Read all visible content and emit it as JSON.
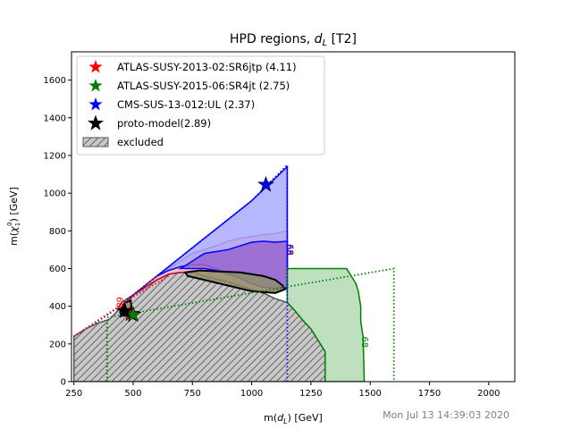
{
  "chart_data": {
    "type": "area",
    "title_main": "HPD regions, ",
    "title_sym": "d",
    "title_sub": "L",
    "title_tail": " [T2]",
    "xlabel_main": "m(",
    "xlabel_sym": "d",
    "xlabel_sub": "L",
    "xlabel_tail": ") [GeV]",
    "ylabel_main": "m(",
    "ylabel_sym": "χ",
    "ylabel_sub": "1",
    "ylabel_sup": "0",
    "ylabel_tail": ") [GeV]",
    "xlim": [
      240,
      2110
    ],
    "ylim": [
      0,
      1750
    ],
    "xticks": [
      250,
      500,
      750,
      1000,
      1250,
      1500,
      1750,
      2000
    ],
    "yticks": [
      0,
      200,
      400,
      600,
      800,
      1000,
      1200,
      1400,
      1600
    ],
    "timestamp": "Mon Jul 13 14:39:03 2020",
    "legend_position": "upper-left",
    "legend": [
      {
        "label": "ATLAS-SUSY-2013-02:SR6jtp (4.11)",
        "marker": "star",
        "color": "#ff0000"
      },
      {
        "label": "ATLAS-SUSY-2015-06:SR4jt (2.75)",
        "marker": "star",
        "color": "#008000"
      },
      {
        "label": "CMS-SUS-13-012:UL (2.37)",
        "marker": "star",
        "color": "#0000ff"
      },
      {
        "label": "proto-model(2.89)",
        "marker": "star",
        "color": "#000000"
      },
      {
        "label": "excluded",
        "marker": "hatch-patch",
        "color": "#c8c8c8"
      }
    ],
    "contour_label": "68",
    "regions": [
      {
        "name": "excluded",
        "fill": "#c8c8c8",
        "hatch": true,
        "stroke": "#555555",
        "points": [
          [
            250,
            0
          ],
          [
            250,
            240
          ],
          [
            300,
            280
          ],
          [
            350,
            310
          ],
          [
            400,
            330
          ],
          [
            430,
            370
          ],
          [
            450,
            420
          ],
          [
            500,
            460
          ],
          [
            550,
            500
          ],
          [
            600,
            540
          ],
          [
            650,
            570
          ],
          [
            700,
            580
          ],
          [
            760,
            580
          ],
          [
            800,
            560
          ],
          [
            850,
            545
          ],
          [
            900,
            530
          ],
          [
            950,
            510
          ],
          [
            1000,
            490
          ],
          [
            1050,
            470
          ],
          [
            1100,
            440
          ],
          [
            1150,
            420
          ],
          [
            1180,
            380
          ],
          [
            1220,
            320
          ],
          [
            1250,
            280
          ],
          [
            1270,
            240
          ],
          [
            1290,
            200
          ],
          [
            1310,
            160
          ],
          [
            1310,
            0
          ]
        ]
      },
      {
        "name": "ATLAS-SUSY-2013-02:SR6jtp",
        "fill": "#ffb3b3",
        "stroke": "#aa0044",
        "points": [
          [
            440,
            380
          ],
          [
            500,
            460
          ],
          [
            550,
            510
          ],
          [
            600,
            560
          ],
          [
            650,
            600
          ],
          [
            700,
            640
          ],
          [
            750,
            680
          ],
          [
            800,
            700
          ],
          [
            850,
            720
          ],
          [
            900,
            745
          ],
          [
            950,
            760
          ],
          [
            1000,
            770
          ],
          [
            1050,
            780
          ],
          [
            1100,
            785
          ],
          [
            1150,
            800
          ],
          [
            1150,
            500
          ],
          [
            1100,
            480
          ],
          [
            1050,
            470
          ],
          [
            1000,
            490
          ],
          [
            950,
            510
          ],
          [
            900,
            530
          ],
          [
            850,
            545
          ],
          [
            800,
            560
          ],
          [
            760,
            580
          ],
          [
            700,
            580
          ],
          [
            650,
            570
          ],
          [
            600,
            540
          ],
          [
            550,
            500
          ],
          [
            500,
            460
          ],
          [
            460,
            400
          ]
        ]
      },
      {
        "name": "CMS-SUS-13-012:UL",
        "fill": "#aaaaff",
        "stroke": "#0000ff",
        "points": [
          [
            600,
            560
          ],
          [
            700,
            660
          ],
          [
            800,
            760
          ],
          [
            900,
            860
          ],
          [
            1000,
            960
          ],
          [
            1100,
            1080
          ],
          [
            1150,
            1140
          ],
          [
            1150,
            490
          ],
          [
            1100,
            500
          ],
          [
            1050,
            520
          ],
          [
            1000,
            540
          ],
          [
            950,
            560
          ],
          [
            900,
            580
          ],
          [
            850,
            600
          ],
          [
            800,
            620
          ],
          [
            750,
            620
          ],
          [
            700,
            610
          ],
          [
            650,
            590
          ]
        ]
      },
      {
        "name": "CMS-SUS-13-012:UL-inner",
        "fill": "#9966cc",
        "stroke": "#0000ff",
        "points": [
          [
            700,
            600
          ],
          [
            750,
            640
          ],
          [
            800,
            680
          ],
          [
            850,
            690
          ],
          [
            900,
            700
          ],
          [
            950,
            720
          ],
          [
            1000,
            740
          ],
          [
            1050,
            745
          ],
          [
            1100,
            740
          ],
          [
            1150,
            745
          ],
          [
            1150,
            500
          ],
          [
            1100,
            495
          ],
          [
            1050,
            500
          ],
          [
            1000,
            520
          ],
          [
            950,
            550
          ],
          [
            900,
            570
          ],
          [
            850,
            590
          ],
          [
            800,
            600
          ],
          [
            750,
            600
          ]
        ]
      },
      {
        "name": "ATLAS-SUSY-2015-06:SR4jt",
        "fill": "#b3dbb3",
        "stroke": "#008000",
        "points": [
          [
            1150,
            600
          ],
          [
            1200,
            600
          ],
          [
            1300,
            600
          ],
          [
            1400,
            600
          ],
          [
            1410,
            580
          ],
          [
            1420,
            560
          ],
          [
            1440,
            520
          ],
          [
            1450,
            480
          ],
          [
            1460,
            400
          ],
          [
            1460,
            320
          ],
          [
            1470,
            240
          ],
          [
            1475,
            0
          ],
          [
            1310,
            0
          ],
          [
            1310,
            160
          ],
          [
            1290,
            200
          ],
          [
            1270,
            240
          ],
          [
            1250,
            280
          ],
          [
            1220,
            320
          ],
          [
            1180,
            380
          ],
          [
            1150,
            420
          ]
        ]
      },
      {
        "name": "proto-model",
        "fill": "#8f8f6a",
        "stroke": "#000000",
        "points": [
          [
            720,
            580
          ],
          [
            780,
            590
          ],
          [
            850,
            585
          ],
          [
            950,
            580
          ],
          [
            1050,
            560
          ],
          [
            1100,
            540
          ],
          [
            1130,
            510
          ],
          [
            1140,
            490
          ],
          [
            1100,
            470
          ],
          [
            1000,
            480
          ],
          [
            900,
            510
          ],
          [
            800,
            540
          ],
          [
            730,
            560
          ]
        ]
      },
      {
        "name": "proto-model-small",
        "fill": "#8f8f6a",
        "stroke": "#000000",
        "points": [
          [
            445,
            370
          ],
          [
            465,
            420
          ],
          [
            490,
            430
          ],
          [
            495,
            370
          ],
          [
            475,
            350
          ],
          [
            450,
            350
          ]
        ]
      }
    ],
    "dotted_outlines": [
      {
        "name": "CMS-dotted",
        "color": "#0000ff",
        "points": [
          [
            250,
            240
          ],
          [
            400,
            360
          ],
          [
            600,
            560
          ],
          [
            800,
            760
          ],
          [
            1000,
            960
          ],
          [
            1150,
            1150
          ],
          [
            1150,
            0
          ]
        ]
      },
      {
        "name": "ATLAS15-dotted",
        "color": "#008000",
        "points": [
          [
            390,
            0
          ],
          [
            390,
            340
          ],
          [
            1600,
            600
          ],
          [
            1600,
            0
          ]
        ]
      },
      {
        "name": "ATLAS13-dotted",
        "color": "#ff0000",
        "points": [
          [
            250,
            240
          ],
          [
            500,
            450
          ],
          [
            650,
            560
          ]
        ]
      }
    ],
    "markers": [
      {
        "series": "ATLAS-SUSY-2013-02:SR6jtp",
        "x": 490,
        "y": 360,
        "color": "#ff0000"
      },
      {
        "series": "ATLAS-SUSY-2015-06:SR4jt",
        "x": 500,
        "y": 355,
        "color": "#008000"
      },
      {
        "series": "CMS-SUS-13-012:UL",
        "x": 1060,
        "y": 1045,
        "color": "#0000ff"
      },
      {
        "series": "proto-model",
        "x": 465,
        "y": 375,
        "color": "#000000"
      }
    ],
    "contour_labels": [
      {
        "x": 1150,
        "y": 700,
        "color": "#aa0044"
      },
      {
        "x": 1150,
        "y": 700,
        "color": "#0000ff"
      },
      {
        "x": 1465,
        "y": 210,
        "color": "#008000"
      },
      {
        "x": 430,
        "y": 420,
        "color": "#ff0000"
      }
    ]
  }
}
